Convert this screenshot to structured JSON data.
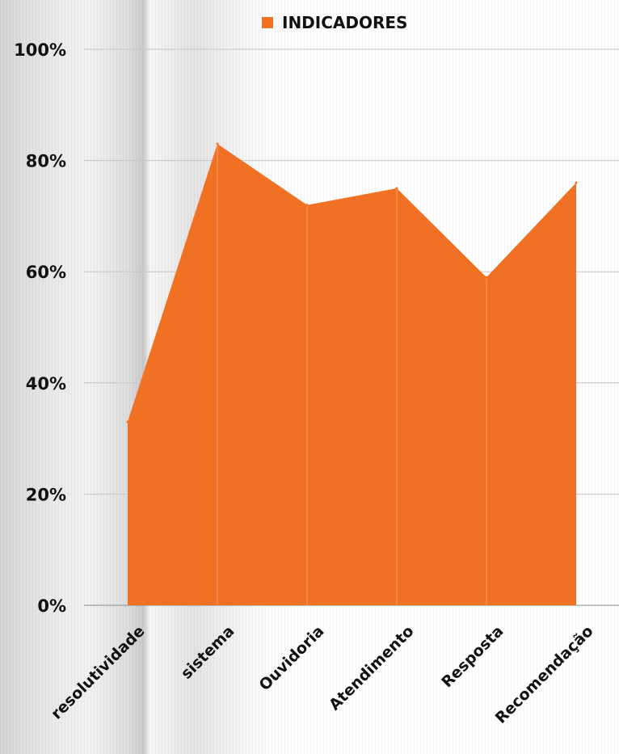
{
  "chart_data": {
    "type": "area",
    "categories": [
      "resolutividade",
      "sistema",
      "Ouvidoria",
      "Atendimento",
      "Resposta",
      "Recomendação"
    ],
    "series": [
      {
        "name": "INDICADORES",
        "values": [
          33,
          83,
          72,
          75,
          59,
          76
        ],
        "color": "#f07124"
      }
    ],
    "y_ticks": [
      "0%",
      "20%",
      "40%",
      "60%",
      "80%",
      "100%"
    ],
    "ylim": [
      0,
      100
    ],
    "grid": true,
    "legend_position": "top-center"
  }
}
